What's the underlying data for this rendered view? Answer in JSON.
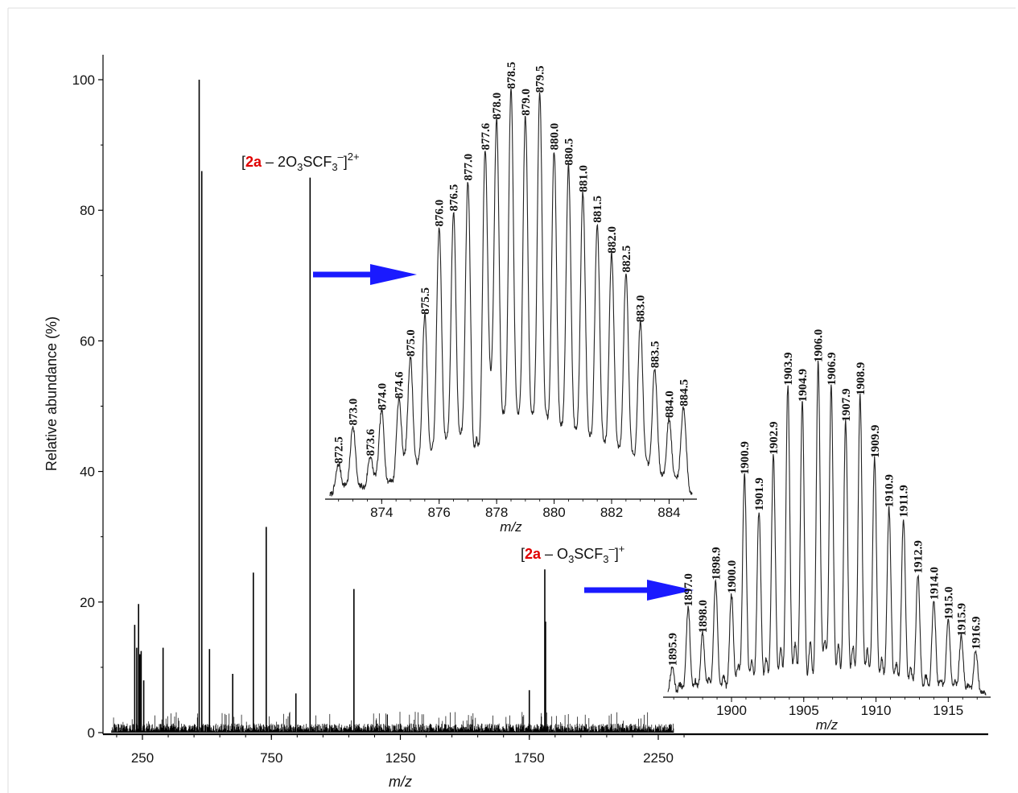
{
  "chart_data": [
    {
      "type": "line",
      "role": "main-spectrum",
      "xlabel": "m/z",
      "ylabel": "Relative abundance (%)",
      "xlim": [
        100,
        2500
      ],
      "ylim": [
        0,
        100
      ],
      "xticks": [
        "250",
        "750",
        "1250",
        "1750",
        "2250"
      ],
      "yticks": [
        "0",
        "20",
        "40",
        "60",
        "80",
        "100"
      ],
      "peaks": {
        "x": [
          220,
          228,
          235,
          240,
          245,
          255,
          330,
          470,
          480,
          510,
          600,
          680,
          730,
          845,
          900,
          1070,
          1750,
          1810,
          1813
        ],
        "y": [
          16.5,
          13,
          19.7,
          12,
          12.5,
          8,
          13,
          100,
          86,
          12.8,
          9,
          24.5,
          31.5,
          6,
          85,
          22,
          6.5,
          25,
          17
        ]
      },
      "annotations": [
        {
          "prefix": "[",
          "compound": "2a",
          "body": " – 2O",
          "sub1": "3",
          "mid": "SCF",
          "sub2": "3",
          "sup_minus": "–",
          "close": "]",
          "sup_charge": "2+",
          "at_x": 900
        },
        {
          "prefix": "[",
          "compound": "2a",
          "body": " – O",
          "sub1": "3",
          "mid": "SCF",
          "sub2": "3",
          "sup_minus": "–",
          "close": "]",
          "sup_charge": "+",
          "at_x": 1810
        }
      ],
      "colors": {
        "arrow": "#1a1aff",
        "compound": "#e00000",
        "trace": "#000000"
      }
    },
    {
      "type": "line",
      "role": "inset-isotope-pattern-2plus",
      "xlabel": "m/z",
      "xlim": [
        872.2,
        884.8
      ],
      "xticks": [
        "874",
        "876",
        "878",
        "880",
        "882",
        "884"
      ],
      "peaks": {
        "labels": [
          "872.5",
          "873.0",
          "873.6",
          "874.0",
          "874.6",
          "875.0",
          "875.5",
          "876.0",
          "876.5",
          "877.0",
          "877.6",
          "878.0",
          "878.5",
          "879.0",
          "879.5",
          "880.0",
          "880.5",
          "881.0",
          "881.5",
          "882.0",
          "882.5",
          "883.0",
          "883.5",
          "884.0",
          "884.5"
        ],
        "x": [
          872.5,
          873.0,
          873.6,
          874.0,
          874.6,
          875.0,
          875.5,
          876.0,
          876.5,
          877.0,
          877.6,
          878.0,
          878.5,
          879.0,
          879.5,
          880.0,
          880.5,
          881.0,
          881.5,
          882.0,
          882.5,
          883.0,
          883.5,
          884.0,
          884.5
        ],
        "y": [
          8,
          18,
          10,
          22,
          25,
          36,
          47,
          70,
          74,
          82,
          90,
          98,
          106,
          99,
          105,
          90,
          86,
          79,
          71,
          63,
          58,
          45,
          33,
          20,
          23
        ]
      }
    },
    {
      "type": "line",
      "role": "inset-isotope-pattern-1plus",
      "xlabel": "m/z",
      "xlim": [
        1895.6,
        1917.6
      ],
      "xticks": [
        "1900",
        "1905",
        "1910",
        "1915"
      ],
      "peaks": {
        "labels": [
          "1895.9",
          "1897.0",
          "1898.0",
          "1898.9",
          "1900.0",
          "1900.9",
          "1901.9",
          "1902.9",
          "1903.9",
          "1904.9",
          "1906.0",
          "1906.9",
          "1907.9",
          "1908.9",
          "1909.9",
          "1910.9",
          "1911.9",
          "1912.9",
          "1914.0",
          "1915.0",
          "1915.9",
          "1916.9"
        ],
        "x": [
          1895.9,
          1897.0,
          1898.0,
          1898.9,
          1900.0,
          1900.9,
          1901.9,
          1902.9,
          1903.9,
          1904.9,
          1906.0,
          1906.9,
          1907.9,
          1908.9,
          1909.9,
          1910.9,
          1911.9,
          1912.9,
          1914.0,
          1915.0,
          1915.9,
          1916.9
        ],
        "y": [
          8,
          26,
          18,
          34,
          30,
          66,
          55,
          72,
          93,
          88,
          100,
          93,
          82,
          90,
          71,
          56,
          53,
          36,
          28,
          22,
          17,
          13
        ]
      }
    }
  ]
}
